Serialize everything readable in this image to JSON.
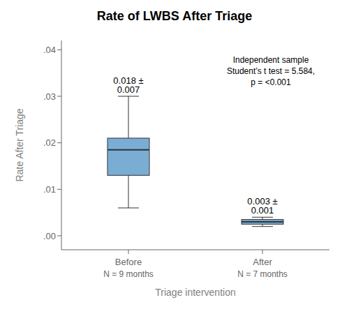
{
  "chart_data": {
    "type": "box",
    "title": "Rate of LWBS After Triage",
    "xlabel": "Triage intervention",
    "ylabel": "Rate After Triage",
    "categories": [
      "Before",
      "After"
    ],
    "sublabels": [
      "N = 9 months",
      "N = 7 months"
    ],
    "boxes": [
      {
        "median": 0.0185,
        "q1": 0.013,
        "q3": 0.021,
        "whisker_low": 0.006,
        "whisker_high": 0.03
      },
      {
        "median": 0.003,
        "q1": 0.0025,
        "q3": 0.0035,
        "whisker_low": 0.002,
        "whisker_high": 0.004
      }
    ],
    "mean_labels": [
      "0.018 ± 0.007",
      "0.003 ± 0.001"
    ],
    "annotation": "Independent sample\nStudent’s t test = 5.584,\np = <0.001",
    "color": "#7aadd4",
    "ylim": [
      -0.003,
      0.042
    ],
    "yticks": [
      {
        "value": 0.0,
        "label": ".00"
      },
      {
        "value": 0.01,
        "label": ".01"
      },
      {
        "value": 0.02,
        "label": ".02"
      },
      {
        "value": 0.03,
        "label": ".03"
      },
      {
        "value": 0.04,
        "label": ".04"
      }
    ],
    "grid": false
  }
}
